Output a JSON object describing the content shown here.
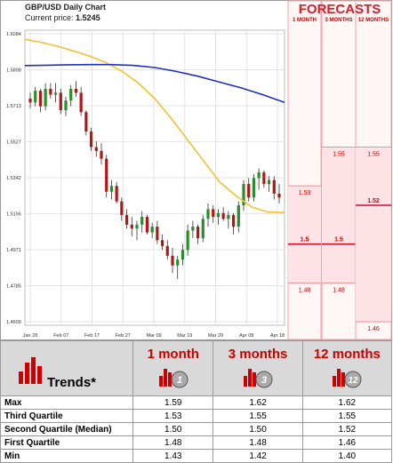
{
  "chart": {
    "title": "GBP/USD Daily Chart",
    "current_price_label": "Current price:",
    "current_price": "1.5245"
  },
  "forecasts": {
    "title": "FORECASTS",
    "columns": [
      "1 MONTH",
      "3 MONTHS",
      "12 MONTHS"
    ],
    "labels": {
      "m1": {
        "q3": "1.53",
        "median": "1.5",
        "q1": "1.48"
      },
      "m3": {
        "q3": "1.55",
        "median": "1.5",
        "q1": "1.48"
      },
      "m12": {
        "q3": "1.55",
        "median": "1.52",
        "q1": "1.46"
      }
    }
  },
  "trends": {
    "label": "Trends*",
    "headers": [
      "1 month",
      "3 months",
      "12 months"
    ],
    "icon_numbers": [
      "1",
      "3",
      "12"
    ],
    "rows": [
      {
        "label": "Max",
        "values": [
          "1.59",
          "1.62",
          "1.62"
        ]
      },
      {
        "label": "Third Quartile",
        "values": [
          "1.53",
          "1.55",
          "1.55"
        ]
      },
      {
        "label": "Second Quartile (Median)",
        "values": [
          "1.50",
          "1.50",
          "1.52"
        ]
      },
      {
        "label": "First Quartile",
        "values": [
          "1.48",
          "1.48",
          "1.46"
        ]
      },
      {
        "label": "Min",
        "values": [
          "1.43",
          "1.42",
          "1.40"
        ]
      }
    ]
  },
  "chart_data": {
    "type": "candlestick",
    "title": "GBP/USD Daily Chart",
    "y_ticks": [
      "1.6084",
      "1.5898",
      "1.5713",
      "1.5527",
      "1.5342",
      "1.5156",
      "1.4971",
      "1.4785",
      "1.4600"
    ],
    "x_ticks": [
      "Jan 28",
      "Feb 07",
      "Feb 17",
      "Feb 27",
      "Mar 09",
      "Mar 19",
      "Mar 29",
      "Apr 08",
      "Apr 18"
    ],
    "ylim": [
      1.46,
      1.6084
    ],
    "candles": [
      [
        1.575,
        1.578,
        1.57,
        1.573
      ],
      [
        1.573,
        1.581,
        1.571,
        1.579
      ],
      [
        1.579,
        1.58,
        1.568,
        1.571
      ],
      [
        1.571,
        1.583,
        1.569,
        1.58
      ],
      [
        1.58,
        1.583,
        1.575,
        1.577
      ],
      [
        1.577,
        1.583,
        1.573,
        1.578
      ],
      [
        1.578,
        1.58,
        1.567,
        1.569
      ],
      [
        1.569,
        1.576,
        1.566,
        1.574
      ],
      [
        1.574,
        1.582,
        1.571,
        1.58
      ],
      [
        1.58,
        1.584,
        1.576,
        1.578
      ],
      [
        1.578,
        1.581,
        1.566,
        1.568
      ],
      [
        1.568,
        1.569,
        1.556,
        1.558
      ],
      [
        1.558,
        1.56,
        1.548,
        1.55
      ],
      [
        1.55,
        1.553,
        1.545,
        1.548
      ],
      [
        1.548,
        1.552,
        1.541,
        1.544
      ],
      [
        1.544,
        1.546,
        1.524,
        1.527
      ],
      [
        1.527,
        1.533,
        1.523,
        1.53
      ],
      [
        1.53,
        1.532,
        1.521,
        1.522
      ],
      [
        1.522,
        1.524,
        1.512,
        1.515
      ],
      [
        1.515,
        1.518,
        1.508,
        1.51
      ],
      [
        1.51,
        1.514,
        1.504,
        1.508
      ],
      [
        1.508,
        1.512,
        1.502,
        1.51
      ],
      [
        1.51,
        1.517,
        1.506,
        1.514
      ],
      [
        1.514,
        1.515,
        1.505,
        1.506
      ],
      [
        1.506,
        1.511,
        1.503,
        1.509
      ],
      [
        1.509,
        1.512,
        1.5,
        1.502
      ],
      [
        1.502,
        1.505,
        1.497,
        1.499
      ],
      [
        1.499,
        1.502,
        1.492,
        1.494
      ],
      [
        1.494,
        1.498,
        1.485,
        1.489
      ],
      [
        1.489,
        1.494,
        1.482,
        1.492
      ],
      [
        1.492,
        1.5,
        1.489,
        1.497
      ],
      [
        1.497,
        1.51,
        1.494,
        1.507
      ],
      [
        1.507,
        1.512,
        1.503,
        1.509
      ],
      [
        1.509,
        1.51,
        1.5,
        1.503
      ],
      [
        1.503,
        1.515,
        1.501,
        1.513
      ],
      [
        1.513,
        1.521,
        1.509,
        1.518
      ],
      [
        1.518,
        1.52,
        1.511,
        1.514
      ],
      [
        1.514,
        1.518,
        1.51,
        1.516
      ],
      [
        1.516,
        1.519,
        1.512,
        1.513
      ],
      [
        1.513,
        1.517,
        1.508,
        1.515
      ],
      [
        1.515,
        1.516,
        1.505,
        1.509
      ],
      [
        1.509,
        1.522,
        1.506,
        1.52
      ],
      [
        1.52,
        1.533,
        1.517,
        1.531
      ],
      [
        1.531,
        1.534,
        1.522,
        1.524
      ],
      [
        1.524,
        1.536,
        1.522,
        1.534
      ],
      [
        1.534,
        1.539,
        1.528,
        1.537
      ],
      [
        1.537,
        1.538,
        1.529,
        1.531
      ],
      [
        1.531,
        1.535,
        1.527,
        1.533
      ],
      [
        1.533,
        1.535,
        1.523,
        1.526
      ],
      [
        1.526,
        1.531,
        1.521,
        1.524
      ]
    ],
    "ma_yellow": [
      1.6055,
      1.604,
      1.602,
      1.5995,
      1.5968,
      1.5935,
      1.589,
      1.583,
      1.575,
      1.565,
      1.554,
      1.543,
      1.532,
      1.525,
      1.519,
      1.5165,
      1.5163
    ],
    "ma_blue": [
      1.592,
      1.5922,
      1.5924,
      1.5925,
      1.5925,
      1.5921,
      1.591,
      1.589,
      1.5865,
      1.5835,
      1.5805,
      1.577,
      1.573
    ],
    "forecast_levels": {
      "m1": {
        "q3": 1.53,
        "median": 1.5,
        "q1": 1.48
      },
      "m3": {
        "q3": 1.55,
        "median": 1.5,
        "q1": 1.48
      },
      "m12": {
        "q3": 1.55,
        "median": 1.52,
        "q1": 1.46
      }
    }
  }
}
